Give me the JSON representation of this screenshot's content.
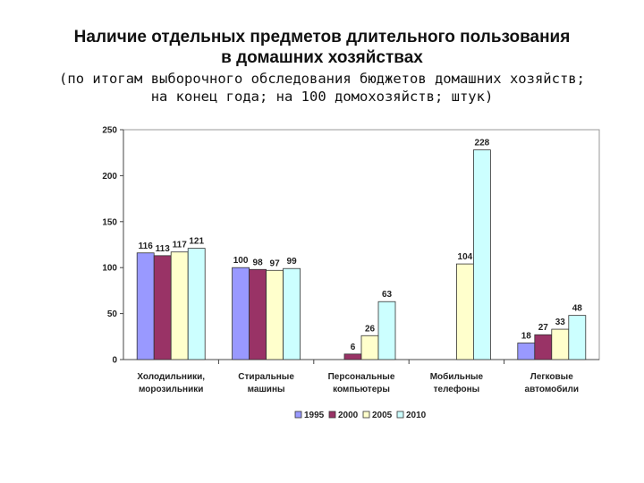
{
  "title_line1": "Наличие отдельных предметов длительного пользования",
  "title_line2": "в домашних хозяйствах",
  "subtitle_line1": "(по итогам выборочного обследования бюджетов домашних хозяйств;",
  "subtitle_line2": "на конец года; на 100 домохозяйств; штук)",
  "chart_data": {
    "type": "bar",
    "categories": [
      [
        "Холодильники,",
        "морозильники"
      ],
      [
        "Стиральные",
        "машины"
      ],
      [
        "Персональные",
        "компьютеры"
      ],
      [
        "Мобильные",
        "телефоны"
      ],
      [
        "Легковые",
        "автомобили"
      ]
    ],
    "series": [
      {
        "name": "1995",
        "color": "#9999ff",
        "values": [
          116,
          100,
          null,
          null,
          18
        ]
      },
      {
        "name": "2000",
        "color": "#993366",
        "values": [
          113,
          98,
          6,
          null,
          27
        ]
      },
      {
        "name": "2005",
        "color": "#ffffcc",
        "values": [
          117,
          97,
          26,
          104,
          33
        ]
      },
      {
        "name": "2010",
        "color": "#ccffff",
        "values": [
          121,
          99,
          63,
          228,
          48
        ]
      }
    ],
    "ylim": [
      0,
      250
    ],
    "yticks": [
      0,
      50,
      100,
      150,
      200,
      250
    ],
    "grid": false,
    "legend_position": "bottom"
  }
}
